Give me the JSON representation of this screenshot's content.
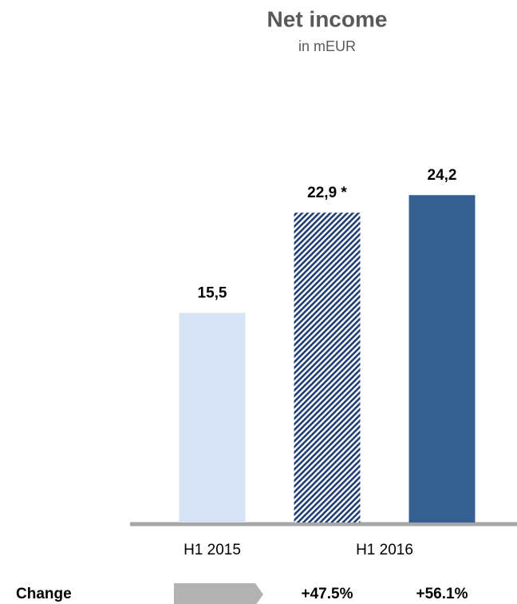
{
  "chart_data": {
    "type": "bar",
    "title": "Net income",
    "subtitle": "in mEUR",
    "categories": [
      "H1 2015",
      "H1 2016",
      null
    ],
    "values": [
      15.5,
      22.9,
      24.2
    ],
    "value_labels": [
      "15,5",
      "22,9 *",
      "24,2"
    ],
    "colors": [
      "#d5e3f4",
      "#1f3d73",
      "#376092"
    ],
    "hatch": [
      false,
      true,
      false
    ],
    "ylim": [
      0,
      30
    ],
    "change": {
      "label": "Change",
      "values": [
        47.5,
        56.1
      ],
      "value_labels": [
        "+47.5%",
        "+56.1%"
      ]
    }
  }
}
